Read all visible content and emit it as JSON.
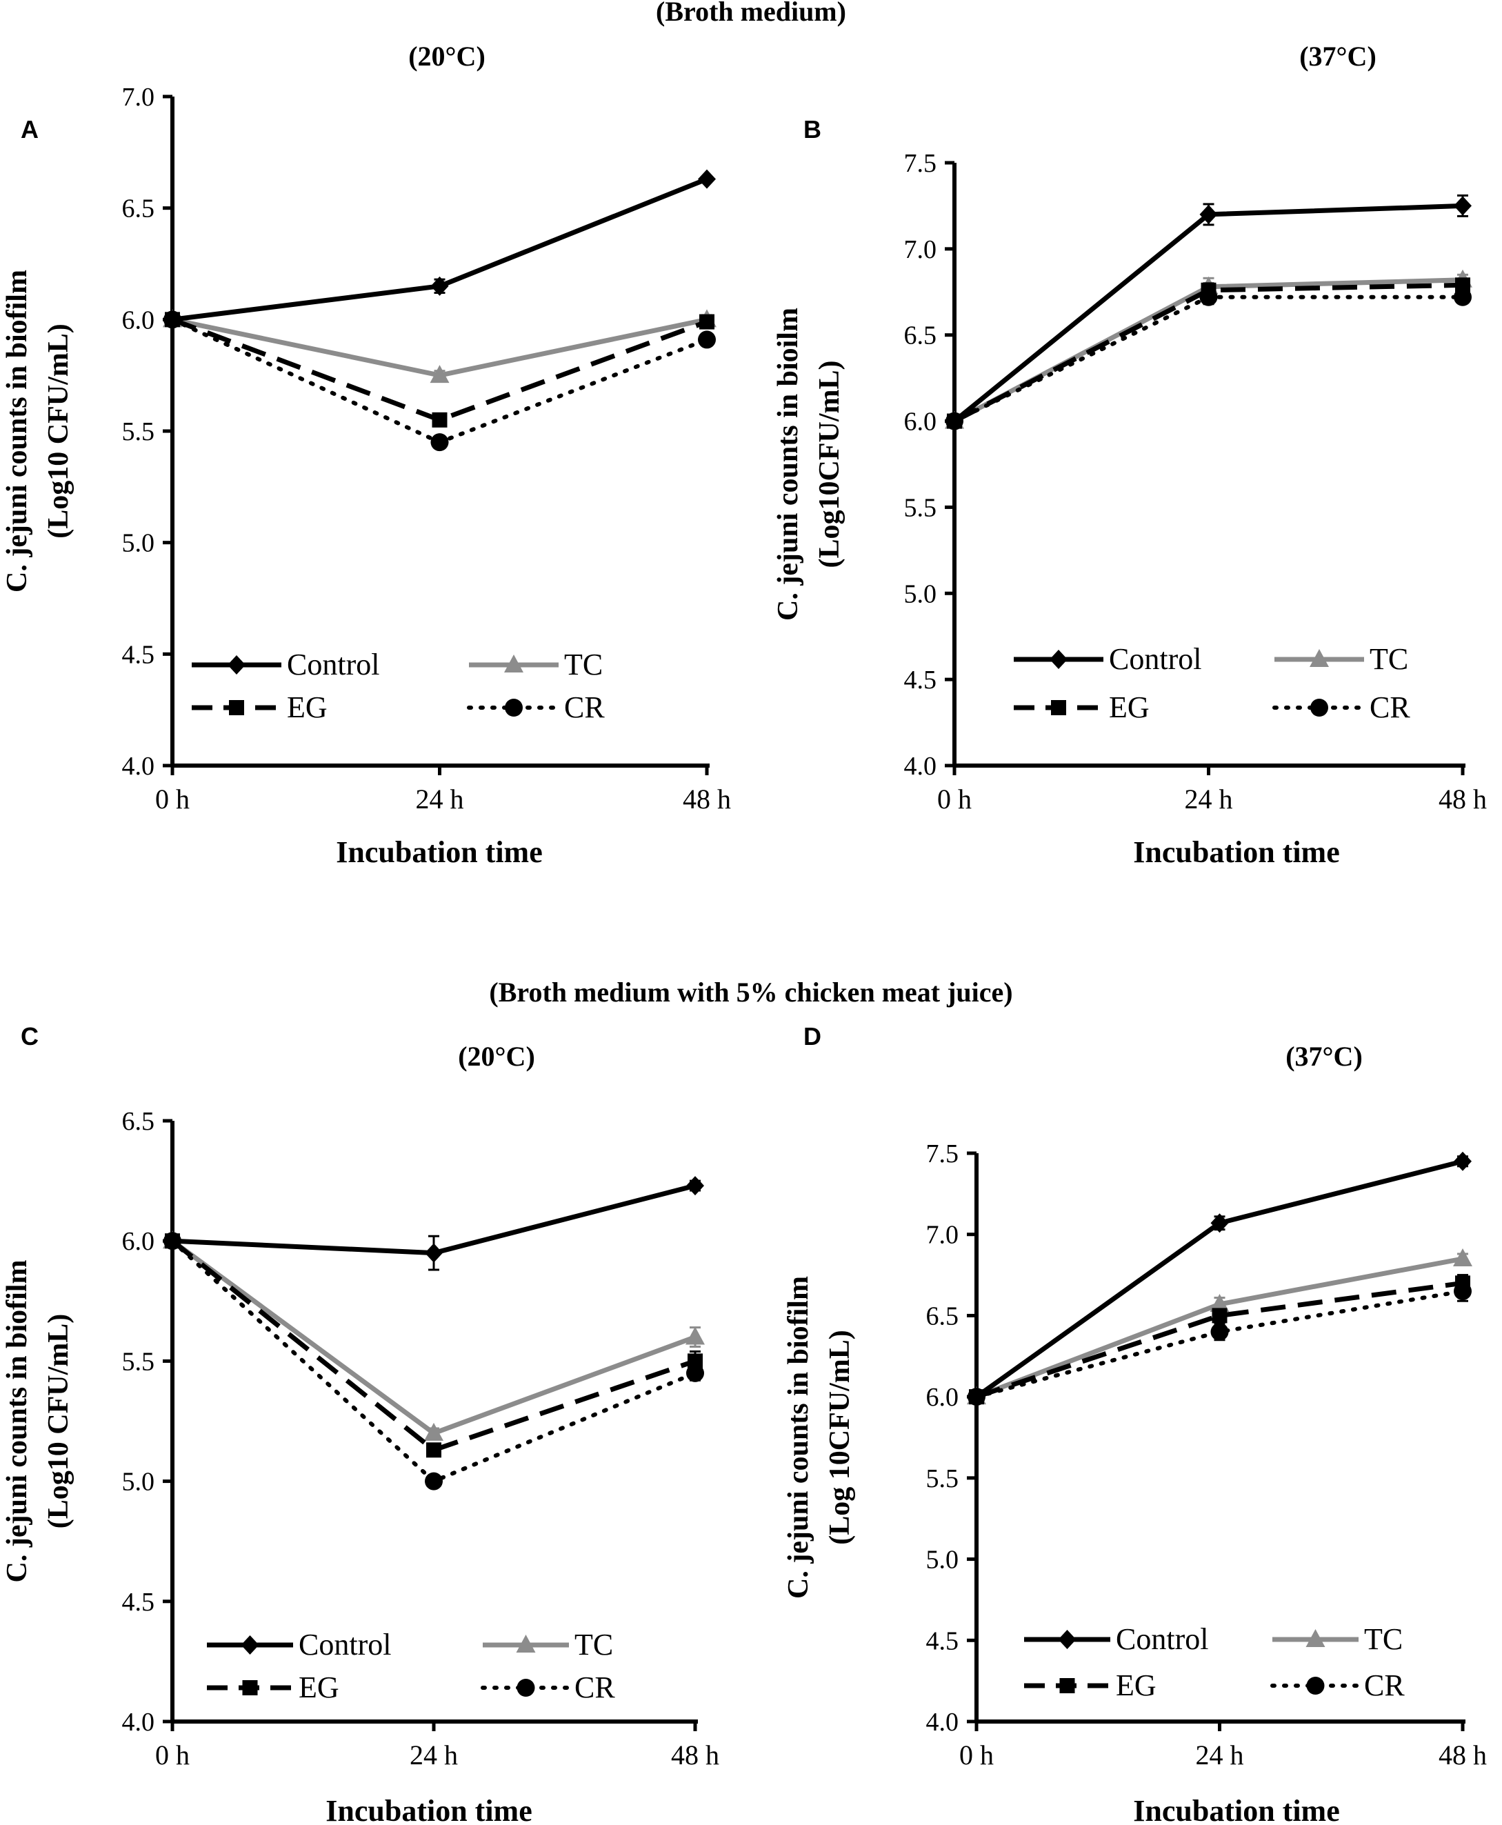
{
  "section_titles": {
    "top": "(Broth medium)",
    "bottom": "(Broth medium with 5% chicken meat juice)"
  },
  "colors": {
    "control": "#000000",
    "tc": "#8c8c8c",
    "eg": "#000000",
    "cr": "#000000",
    "axis": "#000000",
    "background": "#ffffff"
  },
  "chart_data": [
    {
      "panel": "A",
      "type": "line",
      "section": "(Broth medium)",
      "title": "(20°C)",
      "xlabel": "Incubation time",
      "ylabel_line1": "C. jejuni counts  in biofilm",
      "ylabel_line2": "(Log10 CFU/mL)",
      "categories": [
        "0 h",
        "24 h",
        "48 h"
      ],
      "ylim": [
        4.0,
        7.0
      ],
      "yticks": [
        "4.0",
        "4.5",
        "5.0",
        "5.5",
        "6.0",
        "6.5",
        "7.0"
      ],
      "series": [
        {
          "name": "Control",
          "marker": "diamond",
          "values": [
            6.0,
            6.15,
            6.63
          ],
          "errors": [
            0,
            0.03,
            0.01
          ]
        },
        {
          "name": "TC",
          "marker": "triangle",
          "values": [
            6.0,
            5.75,
            6.0
          ],
          "errors": [
            0,
            0.02,
            0.02
          ]
        },
        {
          "name": "EG",
          "marker": "square",
          "values": [
            6.0,
            5.55,
            5.99
          ],
          "errors": [
            0,
            0.02,
            0.02
          ]
        },
        {
          "name": "CR",
          "marker": "circle",
          "values": [
            6.0,
            5.45,
            5.91
          ],
          "errors": [
            0,
            0.02,
            0.02
          ]
        }
      ],
      "legend": {
        "position": "bottom",
        "entries": [
          "Control",
          "TC",
          "EG",
          "CR"
        ]
      }
    },
    {
      "panel": "B",
      "type": "line",
      "section": "(Broth medium)",
      "title": "(37°C)",
      "xlabel": "Incubation time",
      "ylabel_line1": "C. jejuni counts in bioilm",
      "ylabel_line2": "(Log10CFU/mL)",
      "categories": [
        "0 h",
        "24 h",
        "48 h"
      ],
      "ylim": [
        4.0,
        7.5
      ],
      "yticks": [
        "4.0",
        "4.5",
        "5.0",
        "5.5",
        "6.0",
        "6.5",
        "7.0",
        "7.5"
      ],
      "series": [
        {
          "name": "Control",
          "marker": "diamond",
          "values": [
            6.0,
            7.2,
            7.25
          ],
          "errors": [
            0,
            0.06,
            0.06
          ]
        },
        {
          "name": "TC",
          "marker": "triangle",
          "values": [
            6.0,
            6.78,
            6.82
          ],
          "errors": [
            0,
            0.05,
            0.03
          ]
        },
        {
          "name": "EG",
          "marker": "square",
          "values": [
            6.0,
            6.76,
            6.79
          ],
          "errors": [
            0,
            0.04,
            0.03
          ]
        },
        {
          "name": "CR",
          "marker": "circle",
          "values": [
            6.0,
            6.72,
            6.72
          ],
          "errors": [
            0,
            0.04,
            0.03
          ]
        }
      ],
      "legend": {
        "position": "bottom",
        "entries": [
          "Control",
          "TC",
          "EG",
          "CR"
        ]
      }
    },
    {
      "panel": "C",
      "type": "line",
      "section": "(Broth medium with 5% chicken meat juice)",
      "title": "(20°C)",
      "xlabel": "Incubation time",
      "ylabel_line1": "C. jejuni counts in biofilm",
      "ylabel_line2": "(Log10 CFU/mL)",
      "categories": [
        "0 h",
        "24 h",
        "48 h"
      ],
      "ylim": [
        4.0,
        6.5
      ],
      "yticks": [
        "4.0",
        "4.5",
        "5.0",
        "5.5",
        "6.0",
        "6.5"
      ],
      "series": [
        {
          "name": "Control",
          "marker": "diamond",
          "values": [
            6.0,
            5.95,
            6.23
          ],
          "errors": [
            0,
            0.07,
            0.02
          ]
        },
        {
          "name": "TC",
          "marker": "triangle",
          "values": [
            6.0,
            5.2,
            5.6
          ],
          "errors": [
            0,
            0.02,
            0.04
          ]
        },
        {
          "name": "EG",
          "marker": "square",
          "values": [
            6.0,
            5.13,
            5.5
          ],
          "errors": [
            0,
            0.02,
            0.04
          ]
        },
        {
          "name": "CR",
          "marker": "circle",
          "values": [
            6.0,
            5.0,
            5.45
          ],
          "errors": [
            0,
            0.02,
            0.03
          ]
        }
      ],
      "legend": {
        "position": "bottom",
        "entries": [
          "Control",
          "TC",
          "EG",
          "CR"
        ]
      }
    },
    {
      "panel": "D",
      "type": "line",
      "section": "(Broth medium with 5% chicken meat juice)",
      "title": "(37°C)",
      "xlabel": "Incubation time",
      "ylabel_line1": "C. jejuni counts in biofilm",
      "ylabel_line2": "(Log 10CFU/mL)",
      "categories": [
        "0 h",
        "24 h",
        "48 h"
      ],
      "ylim": [
        4.0,
        7.5
      ],
      "yticks": [
        "4.0",
        "4.5",
        "5.0",
        "5.5",
        "6.0",
        "6.5",
        "7.0",
        "7.5"
      ],
      "series": [
        {
          "name": "Control",
          "marker": "diamond",
          "values": [
            6.0,
            7.07,
            7.45
          ],
          "errors": [
            0,
            0.04,
            0.03
          ]
        },
        {
          "name": "TC",
          "marker": "triangle",
          "values": [
            6.0,
            6.57,
            6.85
          ],
          "errors": [
            0,
            0.04,
            0.03
          ]
        },
        {
          "name": "EG",
          "marker": "square",
          "values": [
            6.0,
            6.5,
            6.7
          ],
          "errors": [
            0,
            0.04,
            0.05
          ]
        },
        {
          "name": "CR",
          "marker": "circle",
          "values": [
            6.0,
            6.4,
            6.65
          ],
          "errors": [
            0,
            0.05,
            0.06
          ]
        }
      ],
      "legend": {
        "position": "bottom",
        "entries": [
          "Control",
          "TC",
          "EG",
          "CR"
        ]
      }
    }
  ]
}
